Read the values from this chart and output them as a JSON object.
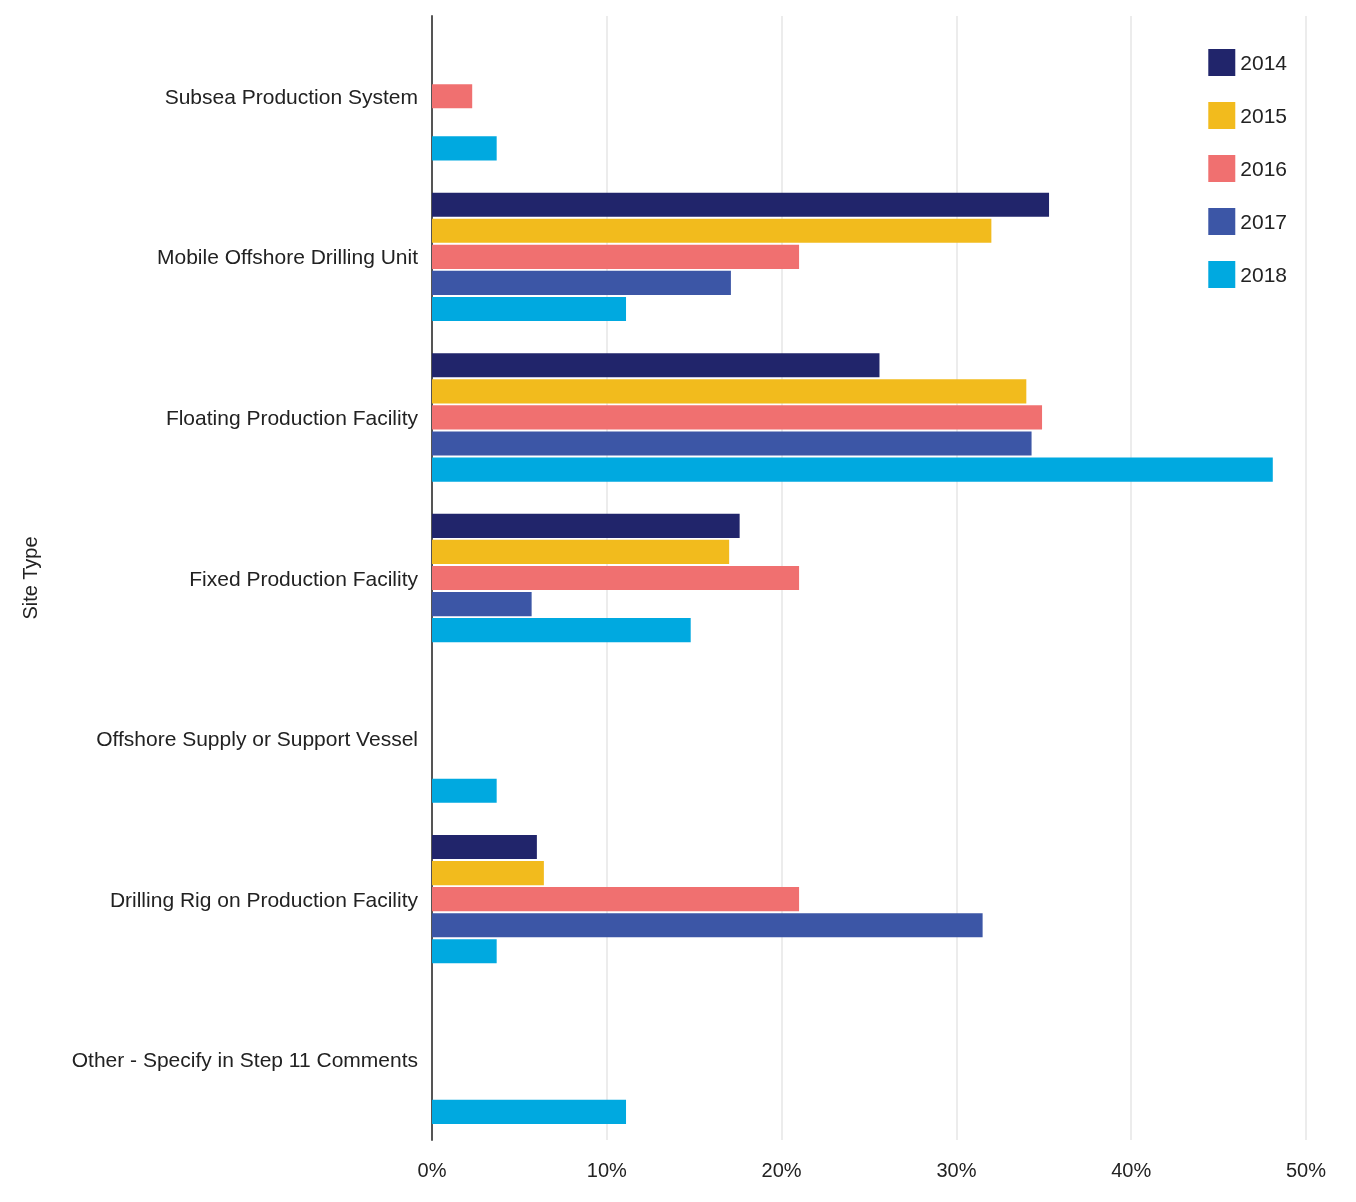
{
  "chart_data": {
    "type": "bar",
    "orientation": "horizontal",
    "ylabel": "Site Type",
    "categories": [
      "Subsea Production System",
      "Mobile Offshore Drilling Unit",
      "Floating Production Facility",
      "Fixed Production Facility",
      "Offshore Supply or Support Vessel",
      "Drilling Rig on Production Facility",
      "Other - Specify in Step 11 Comments"
    ],
    "series": [
      {
        "name": "2014",
        "color": "#21256b",
        "values": [
          null,
          35.3,
          25.6,
          17.6,
          null,
          6.0,
          null
        ]
      },
      {
        "name": "2015",
        "color": "#f2bb1d",
        "values": [
          null,
          32.0,
          34.0,
          17.0,
          null,
          6.4,
          null
        ]
      },
      {
        "name": "2016",
        "color": "#f07070",
        "values": [
          2.3,
          21.0,
          34.9,
          21.0,
          null,
          21.0,
          null
        ]
      },
      {
        "name": "2017",
        "color": "#3c56a6",
        "values": [
          null,
          17.1,
          34.3,
          5.7,
          null,
          31.5,
          null
        ]
      },
      {
        "name": "2018",
        "color": "#00a9e0",
        "values": [
          3.7,
          11.1,
          48.1,
          14.8,
          3.7,
          3.7,
          11.1
        ]
      }
    ],
    "xlim": [
      0,
      50
    ],
    "xticks": [
      {
        "value": 0,
        "label": "0%"
      },
      {
        "value": 10,
        "label": "10%"
      },
      {
        "value": 20,
        "label": "20%"
      },
      {
        "value": 30,
        "label": "30%"
      },
      {
        "value": 40,
        "label": "40%"
      },
      {
        "value": 50,
        "label": "50%"
      }
    ],
    "grid": "x",
    "legend": "top right"
  }
}
